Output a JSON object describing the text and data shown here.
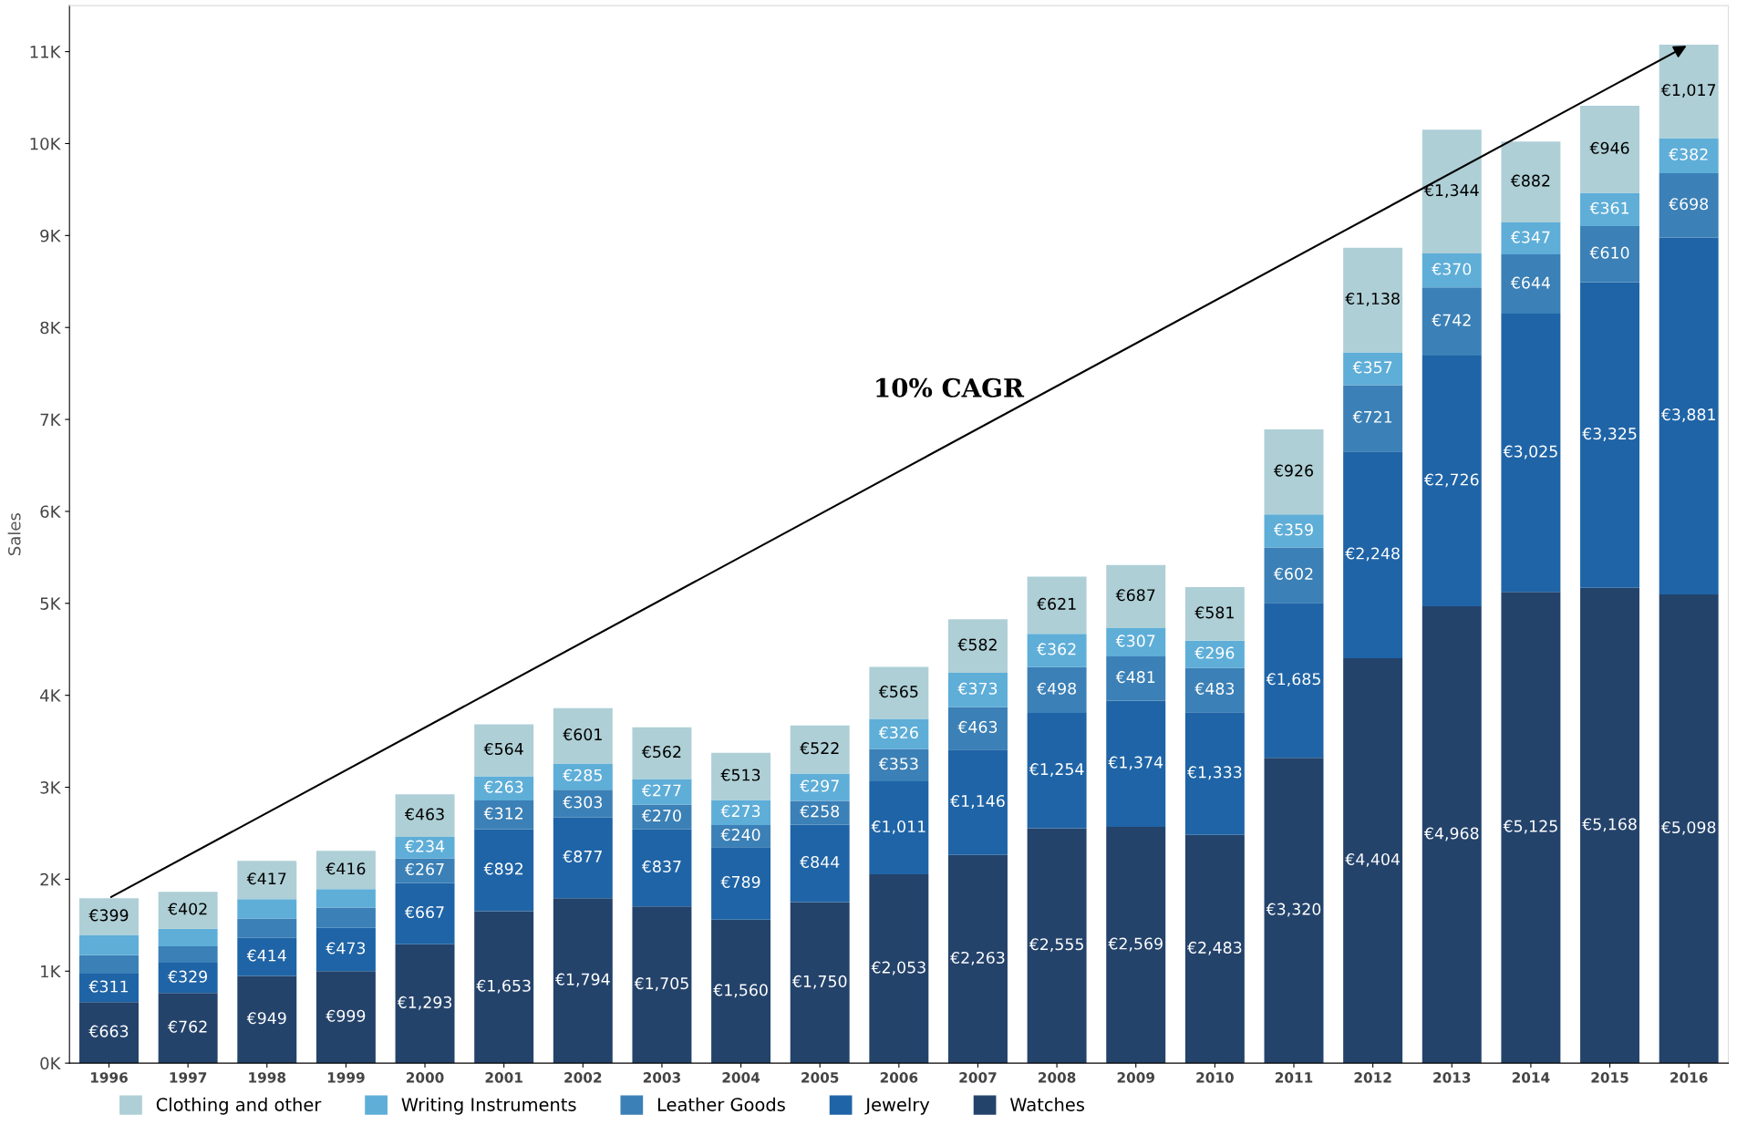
{
  "chart_data": {
    "type": "bar",
    "stacked": true,
    "ylabel": "Sales",
    "categories": [
      "1996",
      "1997",
      "1998",
      "1999",
      "2000",
      "2001",
      "2002",
      "2003",
      "2004",
      "2005",
      "2006",
      "2007",
      "2008",
      "2009",
      "2010",
      "2011",
      "2012",
      "2013",
      "2014",
      "2015",
      "2016"
    ],
    "series": [
      {
        "name": "Watches",
        "color": "#24436b",
        "values": [
          663,
          762,
          949,
          999,
          1293,
          1653,
          1794,
          1705,
          1560,
          1750,
          2053,
          2263,
          2555,
          2569,
          2483,
          3320,
          4404,
          4968,
          5125,
          5168,
          5098
        ],
        "value_labels": [
          "€663",
          "€762",
          "€949",
          "€999",
          "€1,293",
          "€1,653",
          "€1,794",
          "€1,705",
          "€1,560",
          "€1,750",
          "€2,053",
          "€2,263",
          "€2,555",
          "€2,569",
          "€2,483",
          "€3,320",
          "€4,404",
          "€4,968",
          "€5,125",
          "€5,168",
          "€5,098"
        ]
      },
      {
        "name": "Jewelry",
        "color": "#1f64a6",
        "values": [
          311,
          329,
          414,
          473,
          667,
          892,
          877,
          837,
          789,
          844,
          1011,
          1146,
          1254,
          1374,
          1333,
          1685,
          2248,
          2726,
          3025,
          3325,
          3881
        ],
        "value_labels": [
          "€311",
          "€329",
          "€414",
          "€473",
          "€667",
          "€892",
          "€877",
          "€837",
          "€789",
          "€844",
          "€1,011",
          "€1,146",
          "€1,254",
          "€1,374",
          "€1,333",
          "€1,685",
          "€2,248",
          "€2,726",
          "€3,025",
          "€3,325",
          "€3,881"
        ]
      },
      {
        "name": "Leather Goods",
        "color": "#3b80b6",
        "values": [
          200,
          180,
          210,
          220,
          267,
          312,
          303,
          270,
          240,
          258,
          353,
          463,
          498,
          481,
          483,
          602,
          721,
          742,
          644,
          610,
          698
        ],
        "value_labels": [
          null,
          null,
          null,
          null,
          "€267",
          "€312",
          "€303",
          "€270",
          "€240",
          "€258",
          "€353",
          "€463",
          "€498",
          "€481",
          "€483",
          "€602",
          "€721",
          "€742",
          "€644",
          "€610",
          "€698"
        ]
      },
      {
        "name": "Writing Instruments",
        "color": "#5eaed8",
        "values": [
          220,
          190,
          210,
          200,
          234,
          263,
          285,
          277,
          273,
          297,
          326,
          373,
          362,
          307,
          296,
          359,
          357,
          370,
          347,
          361,
          382
        ],
        "value_labels": [
          null,
          null,
          null,
          null,
          "€234",
          "€263",
          "€285",
          "€277",
          "€273",
          "€297",
          "€326",
          "€373",
          "€362",
          "€307",
          "€296",
          "€359",
          "€357",
          "€370",
          "€347",
          "€361",
          "€382"
        ]
      },
      {
        "name": "Clothing and other",
        "color": "#aecfd6",
        "values": [
          399,
          402,
          417,
          416,
          463,
          564,
          601,
          562,
          513,
          522,
          565,
          582,
          621,
          687,
          581,
          926,
          1138,
          1344,
          882,
          946,
          1017
        ],
        "value_labels": [
          "€399",
          "€402",
          "€417",
          "€416",
          "€463",
          "€564",
          "€601",
          "€562",
          "€513",
          "€522",
          "€565",
          "€582",
          "€621",
          "€687",
          "€581",
          "€926",
          "€1,138",
          "€1,344",
          "€882",
          "€946",
          "€1,017"
        ]
      }
    ],
    "ylim": [
      0,
      11500
    ],
    "yticks": [
      {
        "value": 0,
        "label": "0K"
      },
      {
        "value": 1000,
        "label": "1K"
      },
      {
        "value": 2000,
        "label": "2K"
      },
      {
        "value": 3000,
        "label": "3K"
      },
      {
        "value": 4000,
        "label": "4K"
      },
      {
        "value": 5000,
        "label": "5K"
      },
      {
        "value": 6000,
        "label": "6K"
      },
      {
        "value": 7000,
        "label": "7K"
      },
      {
        "value": 8000,
        "label": "8K"
      },
      {
        "value": 9000,
        "label": "9K"
      },
      {
        "value": 10000,
        "label": "10K"
      },
      {
        "value": 11000,
        "label": "11K"
      }
    ],
    "annotations": [
      "10% CAGR"
    ],
    "grid": false,
    "legend": "bottom left"
  }
}
